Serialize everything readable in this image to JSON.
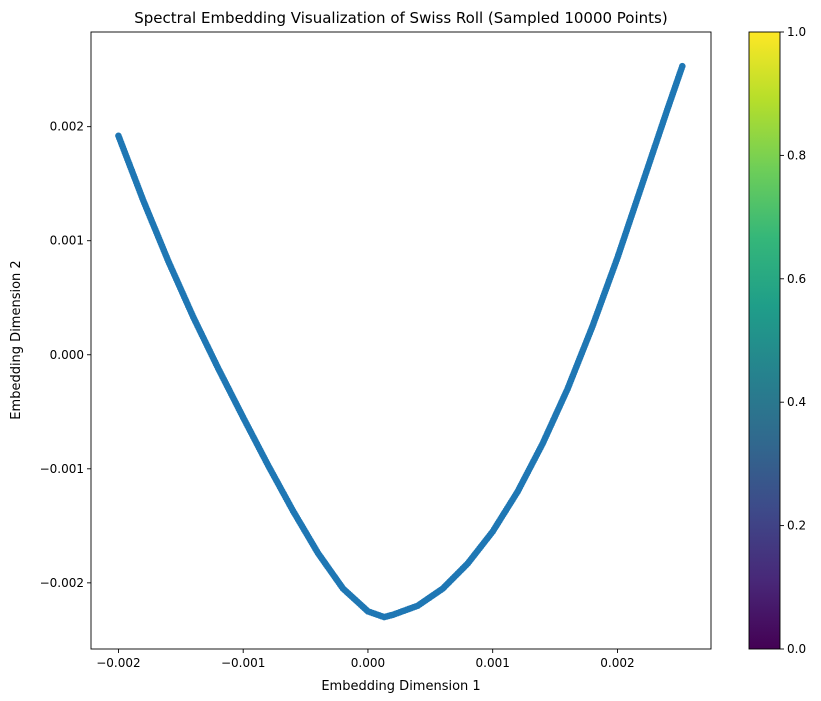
{
  "chart_data": {
    "type": "scatter",
    "title": "Spectral Embedding Visualization of Swiss Roll (Sampled 10000 Points)",
    "xlabel": "Embedding Dimension 1",
    "ylabel": "Embedding Dimension 2",
    "xlim": [
      -0.00222,
      0.00275
    ],
    "ylim": [
      -0.00258,
      0.00283
    ],
    "xticks": [
      {
        "value": -0.002,
        "label": "−0.002"
      },
      {
        "value": -0.001,
        "label": "−0.001"
      },
      {
        "value": 0.0,
        "label": "0.000"
      },
      {
        "value": 0.001,
        "label": "0.001"
      },
      {
        "value": 0.002,
        "label": "0.002"
      }
    ],
    "yticks": [
      {
        "value": -0.002,
        "label": "−0.002"
      },
      {
        "value": -0.001,
        "label": "−0.001"
      },
      {
        "value": 0.0,
        "label": "0.000"
      },
      {
        "value": 0.001,
        "label": "0.001"
      },
      {
        "value": 0.002,
        "label": "0.002"
      }
    ],
    "grid": false,
    "marker_color": "#1f77b4",
    "series": [
      {
        "x": [
          -0.002,
          -0.0018,
          -0.0016,
          -0.0014,
          -0.0012,
          -0.001,
          -0.0008,
          -0.0006,
          -0.0004,
          -0.0002,
          0.0,
          0.00013,
          0.0002,
          0.0004,
          0.0006,
          0.0008,
          0.001,
          0.0012,
          0.0014,
          0.0016,
          0.0018,
          0.002,
          0.0022,
          0.0024,
          0.00252
        ],
        "y": [
          0.00192,
          0.00135,
          0.00082,
          0.00033,
          -0.00012,
          -0.00055,
          -0.00097,
          -0.00137,
          -0.00174,
          -0.00205,
          -0.00225,
          -0.0023,
          -0.00228,
          -0.0022,
          -0.00205,
          -0.00183,
          -0.00155,
          -0.0012,
          -0.00078,
          -0.0003,
          0.00025,
          0.00085,
          0.0015,
          0.00215,
          0.00253
        ]
      }
    ],
    "colorbar": {
      "colormap": "viridis",
      "range": [
        0.0,
        1.0
      ],
      "ticks": [
        {
          "value": 0.0,
          "label": "0.0"
        },
        {
          "value": 0.2,
          "label": "0.2"
        },
        {
          "value": 0.4,
          "label": "0.4"
        },
        {
          "value": 0.6,
          "label": "0.6"
        },
        {
          "value": 0.8,
          "label": "0.8"
        },
        {
          "value": 1.0,
          "label": "1.0"
        }
      ],
      "stops": [
        "#440154",
        "#482878",
        "#3e4989",
        "#31688e",
        "#26828e",
        "#1f9e89",
        "#35b779",
        "#6ece58",
        "#b5de2b",
        "#fde725"
      ]
    }
  }
}
